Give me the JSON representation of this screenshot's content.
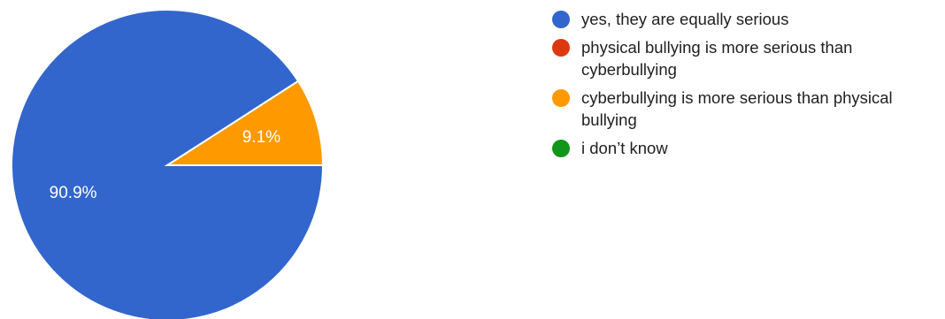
{
  "chart_data": {
    "type": "pie",
    "title": "",
    "slices": [
      {
        "label": "yes, they are equally serious",
        "value": 90.9,
        "display": "90.9%",
        "color": "#3366cc"
      },
      {
        "label": "physical bullying is more serious than cyberbullying",
        "value": 0,
        "display": "",
        "color": "#dc3912"
      },
      {
        "label": "cyberbullying is more serious than physical bullying",
        "value": 9.1,
        "display": "9.1%",
        "color": "#ff9900"
      },
      {
        "label": "i don’t know",
        "value": 0,
        "display": "",
        "color": "#109618"
      }
    ],
    "legend_position": "right"
  }
}
